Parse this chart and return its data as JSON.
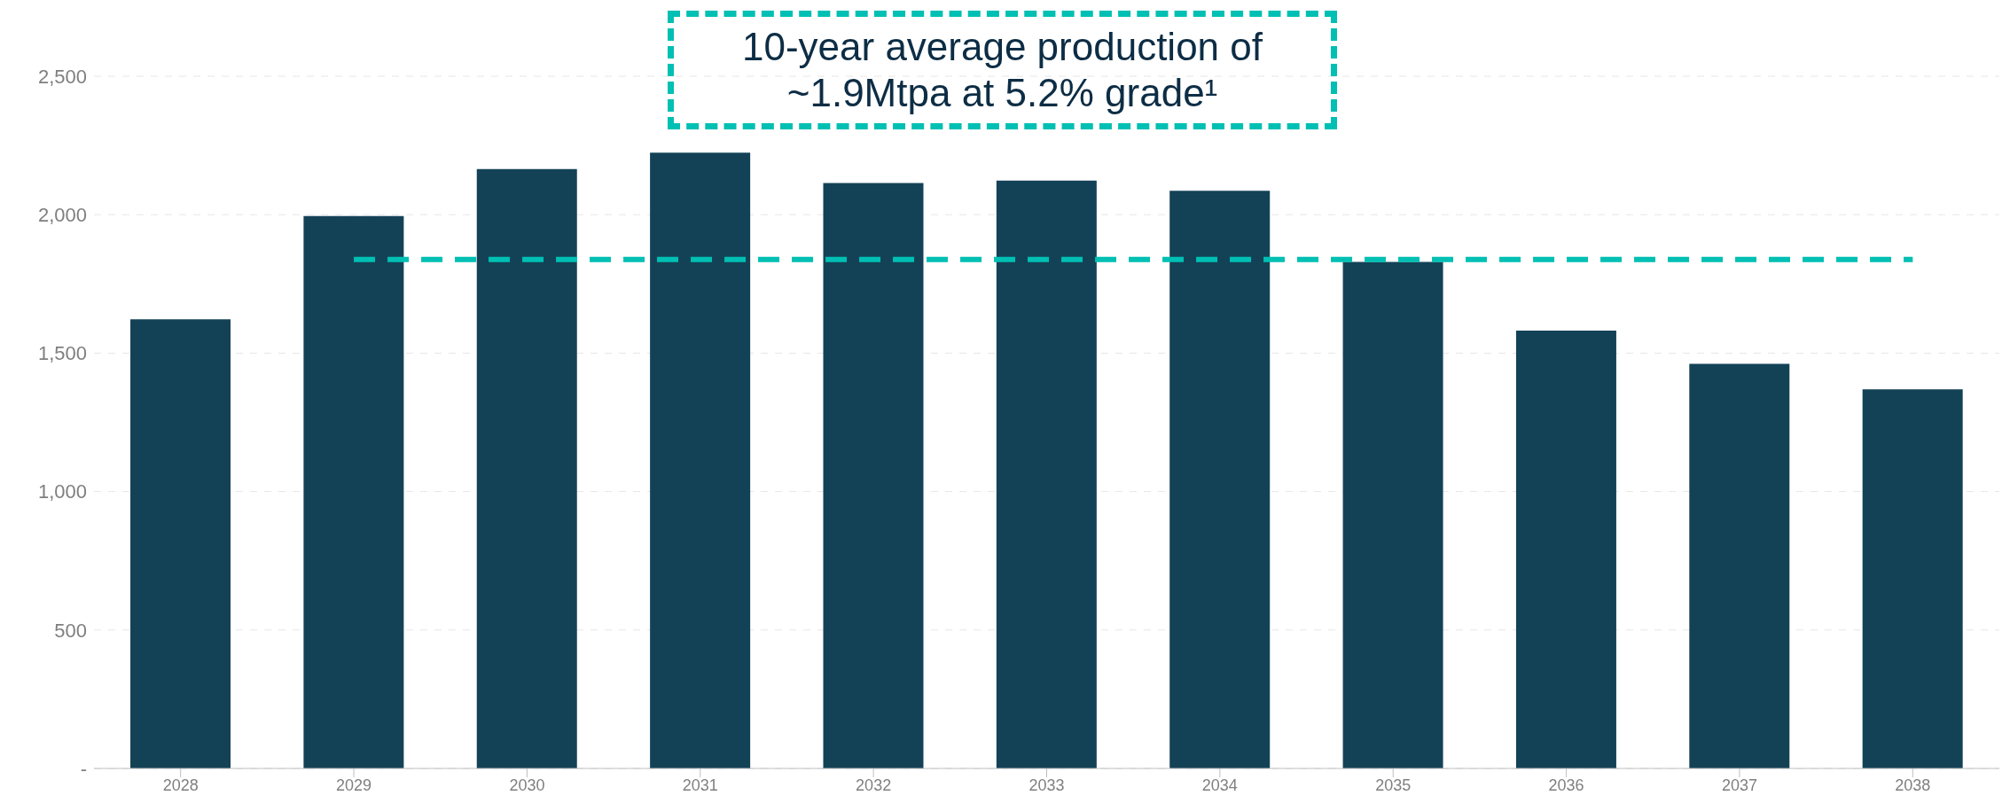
{
  "chart_data": {
    "type": "bar",
    "categories": [
      "2028",
      "2029",
      "2030",
      "2031",
      "2032",
      "2033",
      "2034",
      "2035",
      "2036",
      "2037",
      "2038"
    ],
    "series": [
      {
        "color": "#134257",
        "values": [
          1622,
          1995,
          2165,
          2224,
          2114,
          2123,
          2086,
          1829,
          1581,
          1461,
          1369
        ]
      },
      {
        "type": "line",
        "color": "#00bfb3",
        "line_style": "dashed",
        "marker": "none",
        "values": [
          null,
          1838,
          1838,
          1838,
          1838,
          1838,
          1838,
          1838,
          1838,
          1838,
          1838
        ]
      }
    ],
    "ylim": [
      0,
      2500
    ],
    "yticks": [
      {
        "value": 0,
        "label": "-"
      },
      {
        "value": 500,
        "label": "500"
      },
      {
        "value": 1000,
        "label": "1,000"
      },
      {
        "value": 1500,
        "label": "1,500"
      },
      {
        "value": 2000,
        "label": "2,000"
      },
      {
        "value": 2500,
        "label": "2,500"
      }
    ],
    "grid": "y",
    "legend": false,
    "annotations": [
      "10-year average production of ~1.9Mtpa at 5.2% grade¹"
    ]
  }
}
